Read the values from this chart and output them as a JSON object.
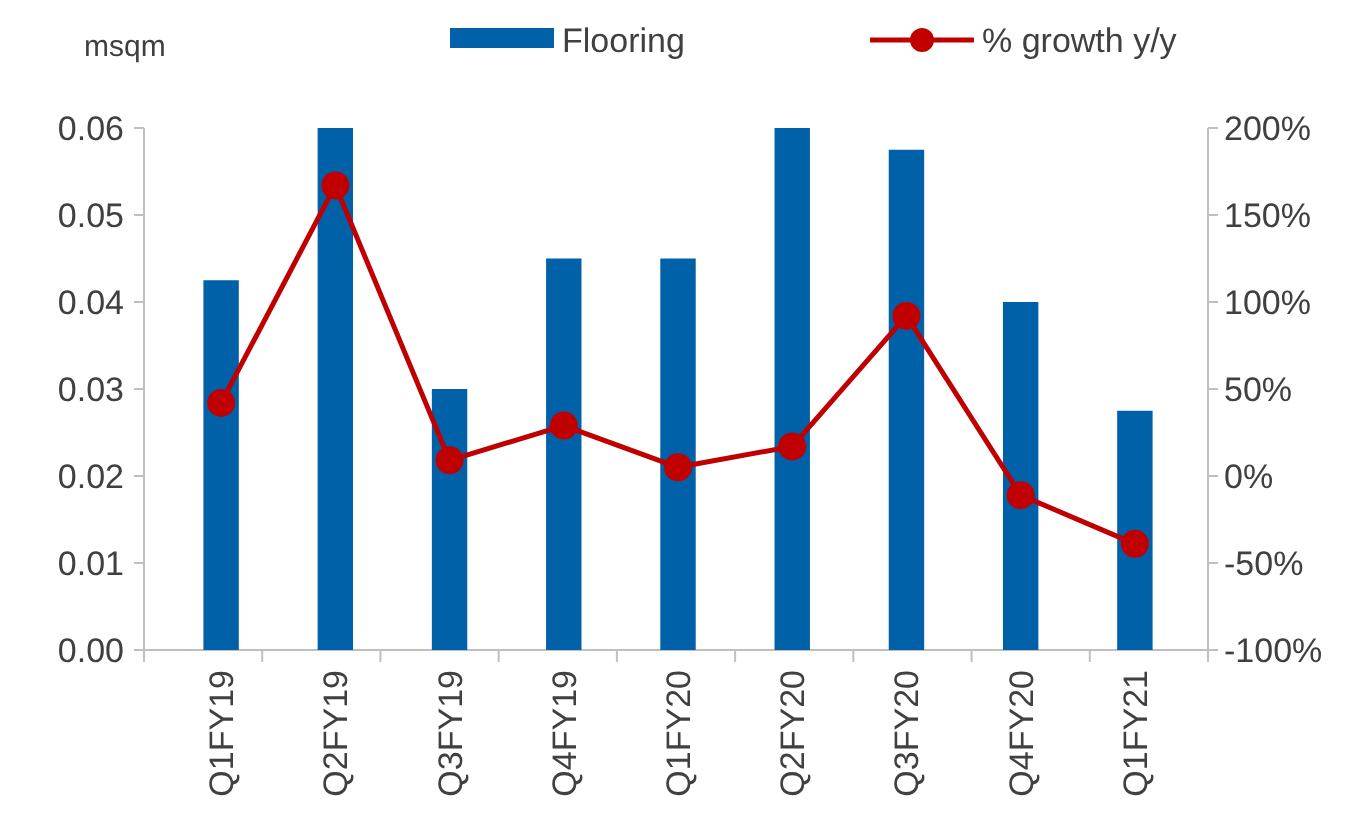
{
  "chart_data": {
    "type": "bar",
    "ylabel": "msqm",
    "categories": [
      "Q1FY19",
      "Q2FY19",
      "Q3FY19",
      "Q4FY19",
      "Q1FY20",
      "Q2FY20",
      "Q3FY20",
      "Q4FY20",
      "Q1FY21"
    ],
    "series": [
      {
        "name": "Flooring",
        "color": "#0060a8",
        "values": [
          0.0425,
          0.06,
          0.03,
          0.045,
          0.045,
          0.06,
          0.0575,
          0.04,
          0.0275
        ]
      },
      {
        "name": "% growth y/y",
        "type": "line",
        "axis": "y2",
        "color": "#c00000",
        "marker": "circle",
        "values": [
          42,
          167,
          9,
          29,
          5,
          17,
          92,
          -11,
          -39
        ]
      }
    ],
    "ylim": [
      0,
      0.06
    ],
    "yticks": [
      {
        "value": 0,
        "label": "0.00"
      },
      {
        "value": 0.01,
        "label": "0.01"
      },
      {
        "value": 0.02,
        "label": "0.02"
      },
      {
        "value": 0.03,
        "label": "0.03"
      },
      {
        "value": 0.04,
        "label": "0.04"
      },
      {
        "value": 0.05,
        "label": "0.05"
      },
      {
        "value": 0.06,
        "label": "0.06"
      }
    ],
    "y2lim": [
      -100,
      200
    ],
    "y2ticks": [
      {
        "value": -100,
        "label": "-100%"
      },
      {
        "value": -50,
        "label": "-50%"
      },
      {
        "value": 0,
        "label": "0%"
      },
      {
        "value": 50,
        "label": "50%"
      },
      {
        "value": 100,
        "label": "100%"
      },
      {
        "value": 150,
        "label": "150%"
      },
      {
        "value": 200,
        "label": "200%"
      }
    ],
    "grid": false,
    "legend": "top"
  }
}
